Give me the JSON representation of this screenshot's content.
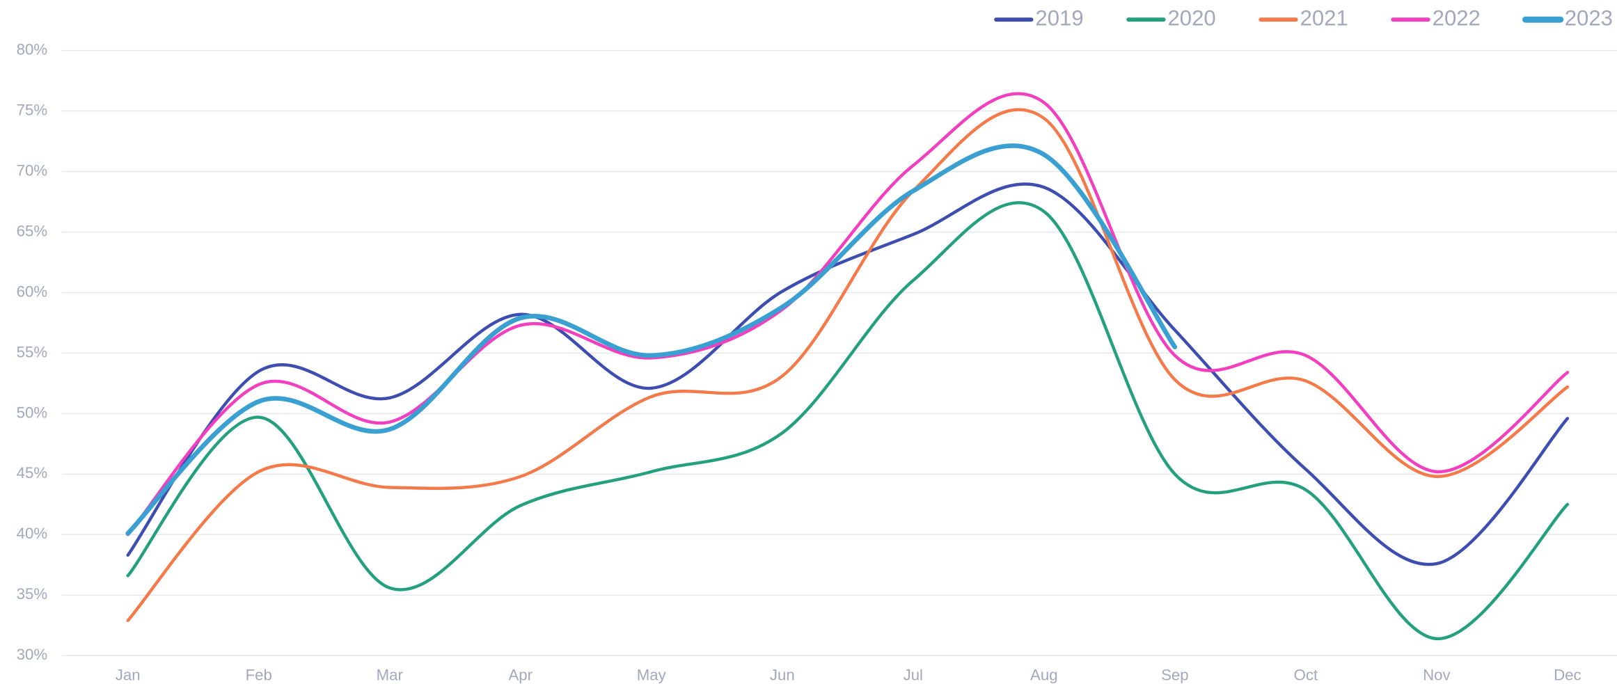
{
  "chart_data": {
    "type": "line",
    "categories": [
      "Jan",
      "Feb",
      "Mar",
      "Apr",
      "May",
      "Jun",
      "Jul",
      "Aug",
      "Sep",
      "Oct",
      "Nov",
      "Dec"
    ],
    "series": [
      {
        "name": "2019",
        "color": "#3d4db0",
        "values": [
          38.3,
          53.5,
          51.3,
          58.2,
          52.1,
          60.1,
          64.8,
          68.7,
          56.9,
          45.4,
          37.6,
          49.6
        ]
      },
      {
        "name": "2020",
        "color": "#24a07f",
        "values": [
          36.6,
          49.7,
          35.6,
          42.4,
          45.2,
          48.4,
          61.0,
          66.7,
          45.0,
          43.7,
          31.4,
          42.5
        ]
      },
      {
        "name": "2021",
        "color": "#f47a4a",
        "values": [
          32.9,
          45.2,
          43.9,
          44.8,
          51.4,
          53.1,
          68.4,
          74.4,
          52.8,
          52.7,
          44.8,
          52.2
        ]
      },
      {
        "name": "2022",
        "color": "#f23fbf",
        "values": [
          40.0,
          52.4,
          49.3,
          57.3,
          54.6,
          58.6,
          70.5,
          75.7,
          54.8,
          54.8,
          45.2,
          53.4
        ]
      },
      {
        "name": "2023",
        "color": "#3a9fd1",
        "values": [
          40.1,
          51.0,
          48.7,
          57.9,
          54.8,
          58.8,
          68.4,
          71.4,
          55.5,
          null,
          null,
          null
        ]
      }
    ],
    "ylim": [
      30,
      80
    ],
    "yticks": [
      {
        "value": 30,
        "label": "30%"
      },
      {
        "value": 35,
        "label": "35%"
      },
      {
        "value": 40,
        "label": "40%"
      },
      {
        "value": 45,
        "label": "45%"
      },
      {
        "value": 50,
        "label": "50%"
      },
      {
        "value": 55,
        "label": "55%"
      },
      {
        "value": 60,
        "label": "60%"
      },
      {
        "value": 65,
        "label": "65%"
      },
      {
        "value": 70,
        "label": "70%"
      },
      {
        "value": 75,
        "label": "75%"
      },
      {
        "value": 80,
        "label": "80%"
      }
    ],
    "grid": true,
    "legend": "top-right"
  }
}
